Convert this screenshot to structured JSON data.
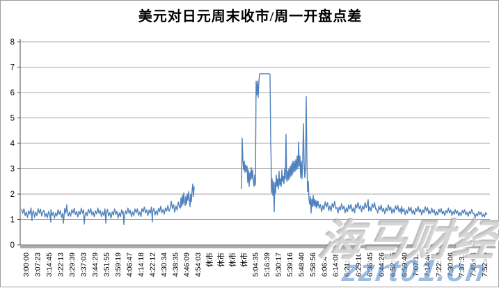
{
  "chart_data": {
    "type": "line",
    "title": "美元对日元周末收市/周一开盘点差",
    "xlabel": "",
    "ylabel": "",
    "ylim": [
      0,
      8
    ],
    "yticks": [
      0,
      1,
      2,
      3,
      4,
      5,
      6,
      7,
      8
    ],
    "grid": true,
    "legend": false,
    "line_color": "#4F81BD",
    "gridline_color": "#878787",
    "axis_band_color": "#ABABAB",
    "closed_market_label": "休市",
    "x_tick_labels": [
      "3:00:00",
      "3:07:23",
      "3:14:45",
      "3:22:13",
      "3:29:39",
      "3:37:03",
      "3:44:29",
      "3:51:55",
      "3:59:19",
      "4:06:47",
      "4:14:18",
      "4:22:12",
      "4:30:34",
      "4:38:35",
      "4:46:09",
      "4:54:03",
      "休市",
      "休市",
      "休市",
      "休市",
      "5:04:35",
      "5:16:39",
      "5:30:17",
      "5:39:16",
      "5:48:40",
      "5:58:56",
      "6:06:44",
      "6:14:08",
      "6:21:43",
      "6:29:10",
      "6:36:45",
      "6:44:26",
      "6:52:05",
      "6:59:40",
      "7:07:11",
      "7:14:40",
      "7:22:19",
      "7:30:06",
      "7:37:33",
      "7:45:04",
      "7:52:40"
    ],
    "x_span": 675,
    "line_groups": [
      [
        {
          "band": [
            2,
            34,
            1.08,
            1.45
          ],
          "marks": [
            [
              17,
              0.95
            ]
          ]
        },
        {
          "band": [
            34,
            64,
            1.05,
            1.4
          ],
          "marks": [
            [
              44,
              0.9
            ],
            [
              62,
              0.85
            ]
          ]
        },
        {
          "band": [
            64,
            122,
            1.1,
            1.45
          ],
          "marks": [
            [
              67,
              1.58
            ],
            [
              92,
              0.82
            ]
          ]
        },
        {
          "band": [
            122,
            148,
            1.05,
            1.42
          ],
          "marks": [
            [
              123,
              0.85
            ]
          ]
        },
        {
          "band": [
            148,
            175,
            1.1,
            1.45
          ],
          "marks": [
            [
              149,
              0.8
            ]
          ]
        },
        {
          "band": [
            175,
            202,
            1.15,
            1.5
          ],
          "marks": [
            [
              190,
              0.9
            ]
          ]
        },
        {
          "band": [
            202,
            217,
            1.2,
            1.55
          ]
        },
        {
          "band": [
            217,
            230,
            1.28,
            1.72
          ]
        },
        {
          "pts": [
            [
              230,
              1.45
            ],
            [
              231,
              1.85
            ],
            [
              232,
              1.5
            ],
            [
              233,
              1.95
            ],
            [
              234,
              1.6
            ],
            [
              235,
              2.05
            ],
            [
              236,
              1.75
            ],
            [
              237,
              1.55
            ],
            [
              238,
              1.9
            ],
            [
              239,
              1.6
            ],
            [
              240,
              2.0
            ],
            [
              241,
              1.75
            ],
            [
              242,
              2.1
            ],
            [
              243,
              1.8
            ],
            [
              244,
              1.5
            ],
            [
              245,
              2.0
            ],
            [
              246,
              1.7
            ],
            [
              247,
              2.15
            ],
            [
              248,
              2.4
            ],
            [
              249,
              1.9
            ],
            [
              250,
              2.3
            ]
          ]
        }
      ],
      [
        {
          "pts": [
            [
              318,
              2.2
            ],
            [
              319,
              4.2
            ],
            [
              320,
              3.35
            ],
            [
              321,
              2.95
            ],
            [
              322,
              3.3
            ],
            [
              323,
              2.85
            ],
            [
              324,
              3.15
            ],
            [
              325,
              2.9
            ],
            [
              326,
              3.1
            ],
            [
              327,
              2.45
            ],
            [
              328,
              2.95
            ],
            [
              329,
              2.3
            ],
            [
              330,
              2.85
            ],
            [
              331,
              2.55
            ],
            [
              332,
              3.05
            ],
            [
              333,
              2.6
            ],
            [
              334,
              2.95
            ],
            [
              335,
              2.55
            ],
            [
              336,
              2.3
            ],
            [
              337,
              2.75
            ],
            [
              338,
              2.35
            ],
            [
              339,
              6.45
            ],
            [
              340,
              5.9
            ],
            [
              341,
              6.45
            ],
            [
              342,
              5.8
            ],
            [
              343,
              6.45
            ],
            [
              344,
              6.74
            ],
            [
              358,
              6.74
            ],
            [
              359,
              6.7
            ],
            [
              360,
              3.95
            ],
            [
              360.5,
              3.5
            ],
            [
              361,
              2.05
            ],
            [
              362,
              2.6
            ],
            [
              363,
              1.95
            ],
            [
              364,
              2.5
            ],
            [
              365,
              1.3
            ],
            [
              366,
              2.45
            ],
            [
              367,
              2.05
            ],
            [
              368,
              2.75
            ],
            [
              369,
              2.3
            ],
            [
              370,
              2.6
            ],
            [
              371,
              2.2
            ],
            [
              372,
              2.9
            ],
            [
              373,
              2.35
            ],
            [
              374,
              2.6
            ],
            [
              375,
              2.3
            ],
            [
              376,
              2.95
            ],
            [
              377,
              2.5
            ],
            [
              378,
              2.7
            ],
            [
              379,
              2.4
            ],
            [
              380,
              3.0
            ],
            [
              381,
              2.6
            ],
            [
              382,
              4.35
            ],
            [
              383,
              2.5
            ],
            [
              384,
              2.9
            ],
            [
              385,
              2.55
            ],
            [
              386,
              3.0
            ],
            [
              387,
              2.6
            ],
            [
              388,
              3.1
            ],
            [
              389,
              2.7
            ],
            [
              390,
              3.2
            ],
            [
              391,
              2.75
            ],
            [
              392,
              3.3
            ],
            [
              393,
              2.85
            ],
            [
              394,
              3.3
            ],
            [
              395,
              2.9
            ],
            [
              396,
              3.35
            ],
            [
              397,
              2.95
            ],
            [
              398,
              3.5
            ],
            [
              399,
              3.0
            ],
            [
              400,
              4.05
            ],
            [
              401,
              3.1
            ],
            [
              402,
              3.5
            ],
            [
              403,
              2.65
            ],
            [
              404,
              3.3
            ],
            [
              405,
              2.6
            ],
            [
              406,
              3.4
            ],
            [
              407,
              4.77
            ],
            [
              408,
              3.2
            ],
            [
              409,
              2.65
            ],
            [
              410,
              3.0
            ],
            [
              411,
              5.84
            ],
            [
              412,
              3.3
            ],
            [
              413,
              2.1
            ],
            [
              414,
              2.5
            ],
            [
              415,
              1.8
            ],
            [
              416,
              1.6
            ],
            [
              417,
              1.9
            ],
            [
              418,
              1.25
            ],
            [
              419,
              1.8
            ],
            [
              420,
              1.5
            ],
            [
              421,
              1.95
            ],
            [
              422,
              1.55
            ],
            [
              423,
              1.8
            ],
            [
              424,
              1.5
            ],
            [
              425,
              1.75
            ],
            [
              426,
              1.45
            ],
            [
              427,
              1.7
            ],
            [
              428,
              1.55
            ]
          ]
        },
        {
          "band": [
            428,
            455,
            1.3,
            1.72
          ]
        },
        {
          "band": [
            455,
            482,
            1.25,
            1.62
          ]
        },
        {
          "band": [
            482,
            512,
            1.3,
            1.68
          ],
          "marks": [
            [
              500,
              1.78
            ]
          ]
        },
        {
          "band": [
            512,
            548,
            1.22,
            1.58
          ]
        },
        {
          "band": [
            548,
            588,
            1.18,
            1.52
          ]
        },
        {
          "band": [
            588,
            625,
            1.15,
            1.45
          ]
        },
        {
          "band": [
            625,
            652,
            1.12,
            1.4
          ]
        },
        {
          "band": [
            652,
            672,
            1.08,
            1.32
          ]
        }
      ]
    ]
  },
  "watermarks": [
    {
      "text": "海马财经",
      "color": "#cdcdcd"
    },
    {
      "text": "zzrt01.cn",
      "color": "#4a86c8"
    }
  ]
}
